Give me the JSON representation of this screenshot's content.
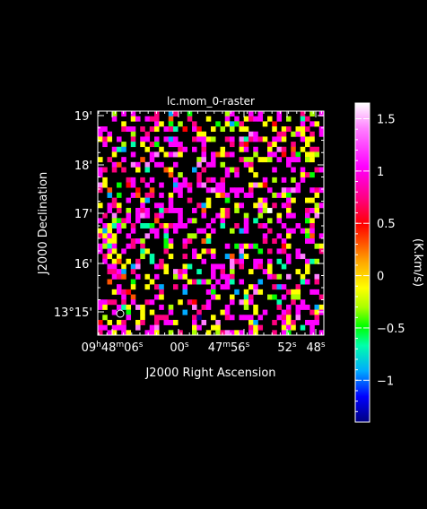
{
  "chart_data": {
    "type": "heatmap",
    "title": "lc.mom_0-raster",
    "xlabel": "J2000 Right Ascension",
    "ylabel": "J2000 Declination",
    "colorbar_label": "(K.km/s)",
    "x_ticks": [
      {
        "h": "09",
        "hs": "h",
        "m": "48",
        "ms": "m",
        "s": "06",
        "ss": "s"
      },
      {
        "h": "",
        "hs": "",
        "m": "",
        "ms": "",
        "s": "00",
        "ss": "s"
      },
      {
        "h": "",
        "hs": "",
        "m": "47",
        "ms": "m",
        "s": "56",
        "ss": "s"
      },
      {
        "h": "",
        "hs": "",
        "m": "",
        "ms": "",
        "s": "52",
        "ss": "s"
      },
      {
        "h": "",
        "hs": "",
        "m": "",
        "ms": "",
        "s": "48",
        "ss": "s"
      }
    ],
    "y_ticks": [
      "13°15'",
      "16'",
      "17'",
      "18'",
      "19'"
    ],
    "colorbar_ticks": [
      "1.5",
      "1",
      "0.5",
      "0",
      "−0.5",
      "−1"
    ],
    "colorbar_range": [
      -1.4,
      1.65
    ],
    "grid": {
      "cols": 48,
      "rows": 44
    },
    "colormap": [
      "#000080",
      "#0000ff",
      "#00aaff",
      "#00ffaa",
      "#00ff00",
      "#aaff00",
      "#ffff00",
      "#ffaa00",
      "#ff5500",
      "#ff0000",
      "#ff0080",
      "#ff00ff",
      "#ff80ff",
      "#ffffff"
    ],
    "cell_fill_fraction": 0.4,
    "beam_marker": "circle, lower-left"
  }
}
